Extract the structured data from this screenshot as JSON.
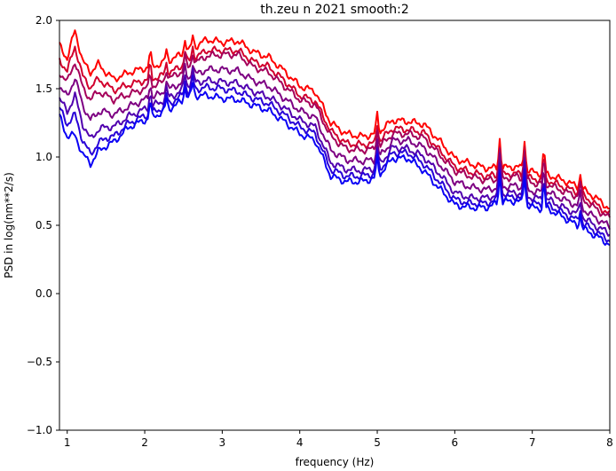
{
  "chart_data": {
    "type": "line",
    "title": "th.zeu n 2021 smooth:2",
    "xlabel": "frequency (Hz)",
    "ylabel": "PSD in log(nm**2/s)",
    "xlim": [
      0.9,
      8.0
    ],
    "ylim": [
      -1.0,
      2.0
    ],
    "xticks": [
      1,
      2,
      3,
      4,
      5,
      6,
      7,
      8
    ],
    "yticks": [
      -1.0,
      -0.5,
      0.0,
      0.5,
      1.0,
      1.5,
      2.0
    ],
    "xtick_labels": [
      "1",
      "2",
      "3",
      "4",
      "5",
      "6",
      "7",
      "8"
    ],
    "ytick_labels": [
      "−1.0",
      "−0.5",
      "0.0",
      "0.5",
      "1.0",
      "1.5",
      "2.0"
    ],
    "grid": false,
    "x": [
      0.9,
      1.0,
      1.1,
      1.2,
      1.3,
      1.4,
      1.5,
      1.6,
      1.8,
      2.0,
      2.2,
      2.4,
      2.6,
      2.8,
      3.0,
      3.2,
      3.4,
      3.6,
      3.8,
      4.0,
      4.2,
      4.4,
      4.6,
      4.8,
      5.0,
      5.2,
      5.4,
      5.6,
      5.8,
      6.0,
      6.2,
      6.4,
      6.6,
      6.8,
      7.0,
      7.2,
      7.4,
      7.6,
      7.8,
      8.0
    ],
    "series": [
      {
        "color": "#ff0000",
        "values": [
          1.82,
          1.72,
          1.93,
          1.7,
          1.62,
          1.68,
          1.62,
          1.57,
          1.62,
          1.65,
          1.68,
          1.73,
          1.79,
          1.86,
          1.84,
          1.85,
          1.77,
          1.73,
          1.63,
          1.52,
          1.48,
          1.25,
          1.17,
          1.15,
          1.17,
          1.27,
          1.26,
          1.24,
          1.12,
          0.99,
          0.95,
          0.92,
          0.92,
          0.93,
          0.89,
          0.87,
          0.83,
          0.78,
          0.71,
          0.62
        ]
      },
      {
        "color": "#d2002d",
        "values": [
          1.71,
          1.63,
          1.81,
          1.59,
          1.51,
          1.57,
          1.53,
          1.49,
          1.53,
          1.56,
          1.59,
          1.64,
          1.71,
          1.78,
          1.78,
          1.78,
          1.7,
          1.66,
          1.56,
          1.45,
          1.41,
          1.19,
          1.1,
          1.09,
          1.1,
          1.21,
          1.2,
          1.18,
          1.05,
          0.93,
          0.89,
          0.86,
          0.87,
          0.88,
          0.84,
          0.83,
          0.78,
          0.74,
          0.66,
          0.58
        ]
      },
      {
        "color": "#a5005a",
        "values": [
          1.62,
          1.55,
          1.7,
          1.51,
          1.42,
          1.48,
          1.45,
          1.42,
          1.46,
          1.5,
          1.54,
          1.6,
          1.67,
          1.74,
          1.75,
          1.75,
          1.66,
          1.62,
          1.52,
          1.42,
          1.38,
          1.15,
          1.06,
          1.05,
          1.06,
          1.17,
          1.17,
          1.14,
          1.02,
          0.9,
          0.86,
          0.83,
          0.84,
          0.86,
          0.81,
          0.8,
          0.75,
          0.71,
          0.63,
          0.55
        ]
      },
      {
        "color": "#7d0082",
        "values": [
          1.52,
          1.44,
          1.58,
          1.38,
          1.27,
          1.33,
          1.33,
          1.31,
          1.37,
          1.42,
          1.46,
          1.52,
          1.59,
          1.64,
          1.64,
          1.63,
          1.56,
          1.52,
          1.43,
          1.34,
          1.29,
          1.05,
          0.98,
          0.97,
          0.98,
          1.12,
          1.12,
          1.07,
          0.95,
          0.82,
          0.78,
          0.76,
          0.78,
          0.79,
          0.75,
          0.74,
          0.69,
          0.64,
          0.56,
          0.49
        ]
      },
      {
        "color": "#5000af",
        "values": [
          1.43,
          1.33,
          1.45,
          1.24,
          1.13,
          1.2,
          1.22,
          1.22,
          1.3,
          1.35,
          1.4,
          1.46,
          1.54,
          1.56,
          1.55,
          1.54,
          1.48,
          1.44,
          1.36,
          1.27,
          1.22,
          0.96,
          0.91,
          0.9,
          0.92,
          1.07,
          1.06,
          1.0,
          0.88,
          0.74,
          0.7,
          0.7,
          0.73,
          0.74,
          0.7,
          0.69,
          0.63,
          0.58,
          0.5,
          0.44
        ]
      },
      {
        "color": "#2800d7",
        "values": [
          1.36,
          1.24,
          1.31,
          1.12,
          1.02,
          1.1,
          1.14,
          1.15,
          1.25,
          1.3,
          1.35,
          1.42,
          1.49,
          1.51,
          1.5,
          1.48,
          1.43,
          1.39,
          1.31,
          1.22,
          1.17,
          0.91,
          0.86,
          0.86,
          0.88,
          1.03,
          1.03,
          0.95,
          0.82,
          0.69,
          0.66,
          0.66,
          0.7,
          0.71,
          0.66,
          0.65,
          0.59,
          0.53,
          0.46,
          0.39
        ]
      },
      {
        "color": "#0a00f5",
        "values": [
          1.3,
          1.15,
          1.16,
          1.02,
          0.95,
          1.04,
          1.08,
          1.11,
          1.22,
          1.27,
          1.32,
          1.38,
          1.45,
          1.45,
          1.43,
          1.42,
          1.38,
          1.34,
          1.26,
          1.17,
          1.12,
          0.86,
          0.82,
          0.82,
          0.85,
          0.99,
          0.99,
          0.9,
          0.77,
          0.65,
          0.63,
          0.63,
          0.67,
          0.68,
          0.63,
          0.62,
          0.56,
          0.49,
          0.43,
          0.36
        ]
      }
    ],
    "spikes": [
      {
        "x": 2.07,
        "height": 0.12
      },
      {
        "x": 2.28,
        "height": 0.08
      },
      {
        "x": 2.52,
        "height": 0.1
      },
      {
        "x": 2.62,
        "height": 0.09
      },
      {
        "x": 5.0,
        "height": 0.15
      },
      {
        "x": 6.58,
        "height": 0.22
      },
      {
        "x": 6.9,
        "height": 0.22
      },
      {
        "x": 7.15,
        "height": 0.2
      },
      {
        "x": 7.62,
        "height": 0.1
      }
    ]
  }
}
